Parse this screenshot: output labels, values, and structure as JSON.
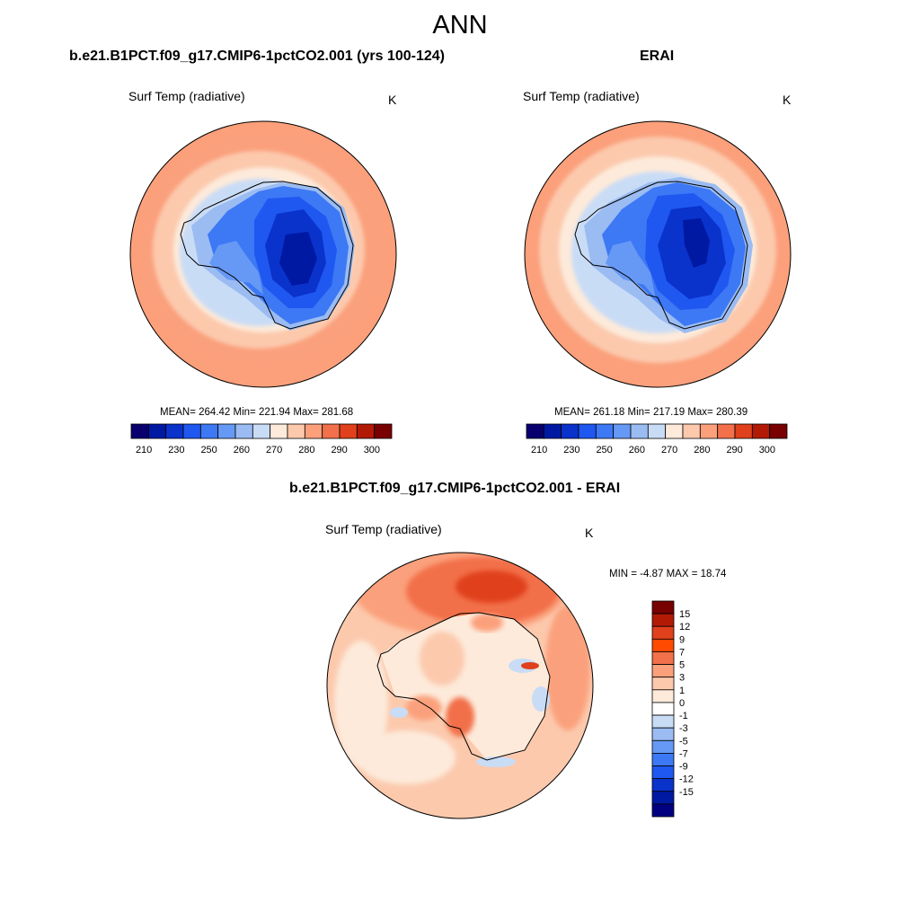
{
  "page_title": "ANN",
  "palette": [
    "#08006e",
    "#0019a3",
    "#0a33cc",
    "#1f58f0",
    "#3d78f5",
    "#6699f5",
    "#9bbcf2",
    "#c9dcf6",
    "#fdeada",
    "#fcc9ad",
    "#fba07b",
    "#f2704a",
    "#e0401c",
    "#b21a06",
    "#790000"
  ],
  "diff_palette": [
    "#000080",
    "#0019a3",
    "#0a33cc",
    "#1f58f0",
    "#3d78f5",
    "#6699f5",
    "#9bbcf2",
    "#c9dcf6",
    "#ffffff",
    "#fdeada",
    "#fcc9ad",
    "#fba07b",
    "#f2704a",
    "#ff4a00",
    "#e0401c",
    "#b21a06",
    "#790000"
  ],
  "chart_data": [
    {
      "type": "heatmap",
      "projection": "south-polar-stereographic",
      "title": "b.e21.B1PCT.f09_g17.CMIP6-1pctCO2.001 (yrs 100-124)",
      "variable": "Surf Temp (radiative)",
      "units": "K",
      "stats": {
        "mean": "264.42",
        "min": "221.94",
        "max": "281.68"
      },
      "stats_text": "MEAN= 264.42  Min= 221.94  Max= 281.68",
      "colorbar": {
        "levels": [
          210,
          220,
          230,
          240,
          250,
          255,
          260,
          265,
          270,
          275,
          280,
          285,
          290,
          295,
          300
        ],
        "tick_labels": [
          "210",
          "230",
          "250",
          "260",
          "270",
          "280",
          "290",
          "300"
        ]
      }
    },
    {
      "type": "heatmap",
      "projection": "south-polar-stereographic",
      "title": "ERAI",
      "variable": "Surf Temp (radiative)",
      "units": "K",
      "stats": {
        "mean": "261.18",
        "min": "217.19",
        "max": "280.39"
      },
      "stats_text": "MEAN= 261.18  Min= 217.19  Max= 280.39",
      "colorbar": {
        "levels": [
          210,
          220,
          230,
          240,
          250,
          255,
          260,
          265,
          270,
          275,
          280,
          285,
          290,
          295,
          300
        ],
        "tick_labels": [
          "210",
          "230",
          "250",
          "260",
          "270",
          "280",
          "290",
          "300"
        ]
      }
    },
    {
      "type": "heatmap",
      "projection": "south-polar-stereographic",
      "title": "b.e21.B1PCT.f09_g17.CMIP6-1pctCO2.001 - ERAI",
      "variable": "Surf Temp (radiative)",
      "units": "K",
      "stats": {
        "min": "-4.87",
        "max": "18.74"
      },
      "stats_text": "MIN =  -4.87 MAX =  18.74",
      "colorbar": {
        "orientation": "vertical",
        "tick_labels": [
          "15",
          "12",
          "9",
          "7",
          "5",
          "3",
          "1",
          "0",
          "-1",
          "-3",
          "-5",
          "-7",
          "-9",
          "-12",
          "-15"
        ]
      }
    }
  ]
}
